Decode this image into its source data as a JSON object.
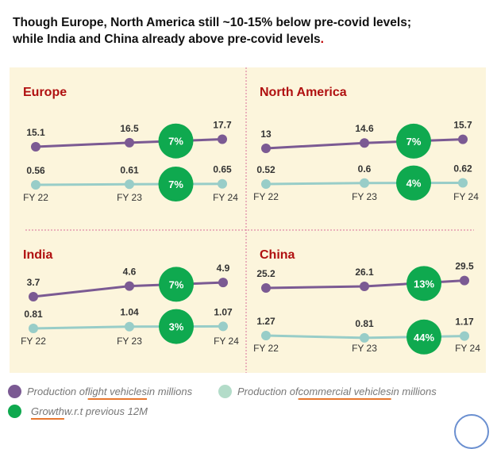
{
  "title": {
    "line1": "Though Europe, North America still ~10-15% below pre-covid levels;",
    "line2": "while India and China already above pre-covid levels",
    "period": "."
  },
  "colors": {
    "light": "#7b5a93",
    "commercial": "#98cdc8",
    "growth": "#0fa94f",
    "region_title": "#b01010",
    "panel": "#fcf5dc"
  },
  "chart_data": [
    {
      "type": "line",
      "region": "Europe",
      "categories": [
        "FY 22",
        "FY 23",
        "FY 24"
      ],
      "series": [
        {
          "name": "Production of light vehicles in millions",
          "values": [
            15.1,
            16.5,
            17.7
          ],
          "growth": "7%"
        },
        {
          "name": "Production of commercial vehicles in millions",
          "values": [
            0.56,
            0.61,
            0.65
          ],
          "growth": "7%"
        }
      ]
    },
    {
      "type": "line",
      "region": "North America",
      "categories": [
        "FY 22",
        "FY 23",
        "FY 24"
      ],
      "series": [
        {
          "name": "Production of light vehicles in millions",
          "values": [
            13.0,
            14.6,
            15.7
          ],
          "growth": "7%"
        },
        {
          "name": "Production of commercial vehicles in millions",
          "values": [
            0.52,
            0.6,
            0.62
          ],
          "growth": "4%"
        }
      ]
    },
    {
      "type": "line",
      "region": "India",
      "categories": [
        "FY 22",
        "FY 23",
        "FY 24"
      ],
      "series": [
        {
          "name": "Production of light vehicles in millions",
          "values": [
            3.7,
            4.6,
            4.9
          ],
          "growth": "7%"
        },
        {
          "name": "Production of commercial vehicles in millions",
          "values": [
            0.81,
            1.04,
            1.07
          ],
          "growth": "3%"
        }
      ]
    },
    {
      "type": "line",
      "region": "China",
      "categories": [
        "FY 22",
        "FY 23",
        "FY 24"
      ],
      "series": [
        {
          "name": "Production of light vehicles in millions",
          "values": [
            25.2,
            26.1,
            29.5
          ],
          "growth": "13%"
        },
        {
          "name": "Production of commercial vehicles in millions",
          "values": [
            1.27,
            0.81,
            1.17
          ],
          "growth": "44%"
        }
      ]
    }
  ],
  "legend": {
    "light": {
      "pre": "Production of ",
      "ul": "light vehicles",
      "post": " in millions"
    },
    "commercial": {
      "pre": "Production of ",
      "ul": "commercial vehicles",
      "post": " in millions"
    },
    "growth": {
      "ul": "Growth",
      "post": " w.r.t previous 12M"
    }
  }
}
